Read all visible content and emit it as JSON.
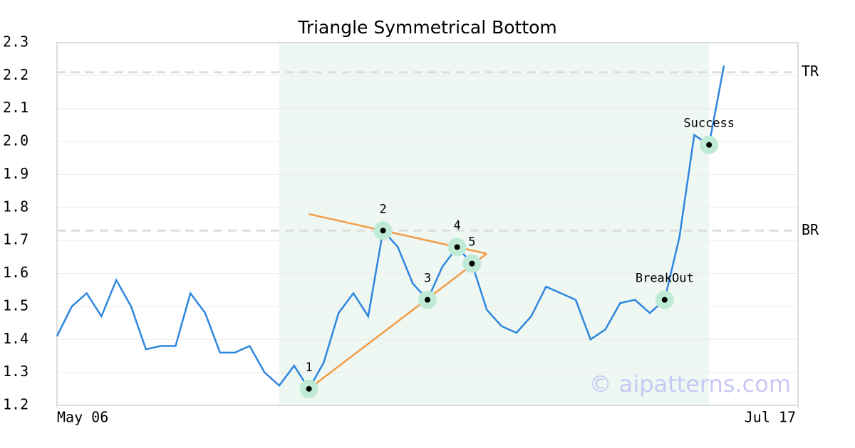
{
  "chart_data": {
    "type": "line",
    "title": "Triangle Symmetrical Bottom",
    "watermark": "© aipatterns.com",
    "x": [
      0,
      1,
      2,
      3,
      4,
      5,
      6,
      7,
      8,
      9,
      10,
      11,
      12,
      13,
      14,
      15,
      16,
      17,
      18,
      19,
      20,
      21,
      22,
      23,
      24,
      25,
      26,
      27,
      28,
      29,
      30,
      31,
      32,
      33,
      34,
      35,
      36,
      37,
      38,
      39,
      40,
      41,
      42,
      43,
      44,
      45
    ],
    "values": [
      1.41,
      1.5,
      1.54,
      1.47,
      1.58,
      1.5,
      1.37,
      1.38,
      1.38,
      1.54,
      1.48,
      1.36,
      1.36,
      1.38,
      1.3,
      1.26,
      1.32,
      1.25,
      1.33,
      1.48,
      1.54,
      1.47,
      1.73,
      1.68,
      1.57,
      1.52,
      1.62,
      1.68,
      1.63,
      1.49,
      1.44,
      1.42,
      1.47,
      1.56,
      1.54,
      1.52,
      1.4,
      1.43,
      1.51,
      1.52,
      1.48,
      1.52,
      1.71,
      2.02,
      1.99,
      2.23
    ],
    "color": "#2e86de",
    "xlim": [
      0,
      50
    ],
    "xticks": [
      {
        "value": 0,
        "label": "May 06"
      },
      {
        "value": 50,
        "label": "Jul 17"
      }
    ],
    "ylim": [
      1.2,
      2.3
    ],
    "yticks": [
      1.2,
      1.3,
      1.4,
      1.5,
      1.6,
      1.7,
      1.8,
      1.9,
      {
        "value": 2,
        "label": "2.0"
      },
      2.1,
      2.2,
      2.3
    ],
    "grid": true,
    "shaded_range": [
      15,
      44
    ],
    "shade_color": "#eef7f2",
    "trend_color": "#f39c45",
    "trend_lines": [
      {
        "x": [
          17,
          29
        ],
        "y": [
          1.78,
          1.66
        ]
      },
      {
        "x": [
          17,
          29
        ],
        "y": [
          1.25,
          1.66
        ]
      }
    ],
    "levels": [
      {
        "value": 2.21,
        "label": "TR"
      },
      {
        "value": 1.73,
        "label": "BR"
      }
    ],
    "points": [
      {
        "x": 17,
        "y": 1.25,
        "label": "1"
      },
      {
        "x": 22,
        "y": 1.73,
        "label": "2"
      },
      {
        "x": 25,
        "y": 1.52,
        "label": "3"
      },
      {
        "x": 27,
        "y": 1.68,
        "label": "4"
      },
      {
        "x": 28,
        "y": 1.63,
        "label": "5"
      },
      {
        "x": 41,
        "y": 1.52,
        "label": "BreakOut"
      },
      {
        "x": 44,
        "y": 1.99,
        "label": "Success"
      }
    ]
  }
}
